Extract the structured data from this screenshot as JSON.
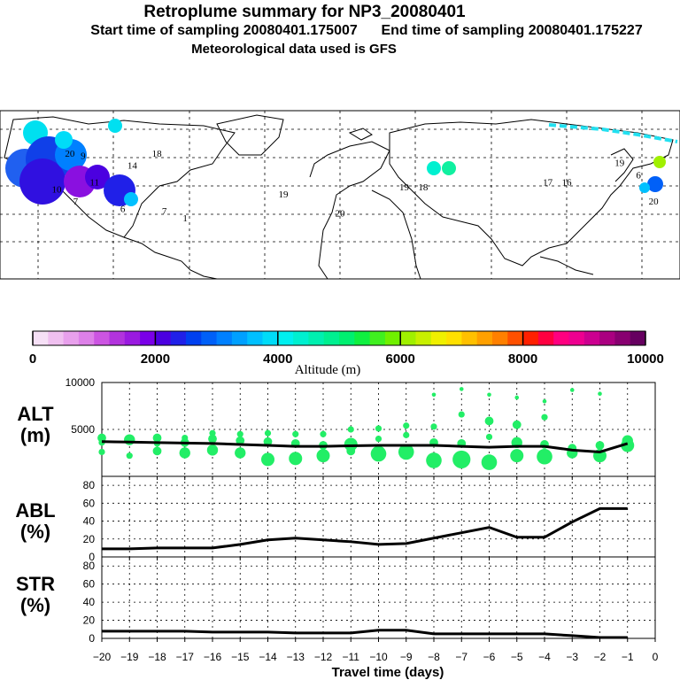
{
  "header": {
    "title": "Retroplume summary for NP3_20080401",
    "start_label": "Start time of sampling 20080401.175007",
    "end_label": "End time of sampling 20080401.175227",
    "met_label": "Meteorological data used is GFS"
  },
  "chart_data": [
    {
      "type": "map",
      "title": "Retroplume positions",
      "map_labels": [
        {
          "text": "20",
          "lon": -143,
          "lat": 72,
          "alt": 3500
        },
        {
          "text": "9",
          "lon": -136,
          "lat": 71,
          "alt": 3400
        },
        {
          "text": "18",
          "lon": -97,
          "lat": 72,
          "alt": 3700
        },
        {
          "text": "14",
          "lon": -110,
          "lat": 67,
          "alt": 3300
        },
        {
          "text": "11",
          "lon": -130,
          "lat": 60,
          "alt": 2200
        },
        {
          "text": "10",
          "lon": -150,
          "lat": 57,
          "alt": 2000
        },
        {
          "text": "7",
          "lon": -140,
          "lat": 52,
          "alt": 1500
        },
        {
          "text": "6",
          "lon": -115,
          "lat": 49,
          "alt": 1200
        },
        {
          "text": "7",
          "lon": -93,
          "lat": 48,
          "alt": 2000
        },
        {
          "text": "1",
          "lon": -82,
          "lat": 45,
          "alt": 2400
        },
        {
          "text": "19",
          "lon": -30,
          "lat": 55,
          "alt": 3900
        },
        {
          "text": "20",
          "lon": 0,
          "lat": 47,
          "alt": 4400
        },
        {
          "text": "19",
          "lon": 34,
          "lat": 58,
          "alt": 3700
        },
        {
          "text": "18",
          "lon": 44,
          "lat": 58,
          "alt": 4200
        },
        {
          "text": "17",
          "lon": 110,
          "lat": 60,
          "alt": 4800
        },
        {
          "text": "16",
          "lon": 120,
          "lat": 60,
          "alt": 5000
        },
        {
          "text": "19",
          "lon": 148,
          "lat": 68,
          "alt": 6300
        },
        {
          "text": "6",
          "lon": 158,
          "lat": 63,
          "alt": 6400
        },
        {
          "text": "20",
          "lon": 166,
          "lat": 52,
          "alt": 2300
        }
      ]
    },
    {
      "type": "colorbar",
      "xlabel": "Altitude (m)",
      "range": [
        0,
        10000
      ],
      "tick_labels": [
        "0",
        "2000",
        "4000",
        "6000",
        "8000",
        "10000"
      ],
      "colors": [
        "#f6e0f6",
        "#f0c0f0",
        "#e8a0ec",
        "#dd80e8",
        "#cc55e2",
        "#b233dd",
        "#9a1ae0",
        "#7a00e8",
        "#4b00e0",
        "#2020e8",
        "#0040f0",
        "#0060f8",
        "#0080ff",
        "#00a0ff",
        "#00c0ff",
        "#00dcf8",
        "#00f0f0",
        "#00f0d0",
        "#00f0b0",
        "#00f090",
        "#00f070",
        "#10f040",
        "#40f020",
        "#70f000",
        "#a0f000",
        "#c8f000",
        "#f0f000",
        "#ffe000",
        "#ffc000",
        "#ffa000",
        "#ff8000",
        "#ff5000",
        "#ff2000",
        "#ff0040",
        "#ff0080",
        "#ee0090",
        "#cc0090",
        "#aa0080",
        "#880070",
        "#660060"
      ]
    },
    {
      "type": "scatter+line",
      "panel": "ALT",
      "ylabel": "ALT (m)",
      "ylim": [
        0,
        10000
      ],
      "y_tick_labels": [
        "5000",
        "10000"
      ],
      "x": [
        -20,
        -19,
        -18,
        -17,
        -16,
        -15,
        -14,
        -13,
        -12,
        -11,
        -10,
        -9,
        -8,
        -7,
        -6,
        -5,
        -4,
        -3,
        -2,
        -1
      ],
      "mean": [
        3700,
        3650,
        3600,
        3550,
        3500,
        3400,
        3300,
        3200,
        3200,
        3250,
        3300,
        3300,
        3300,
        3200,
        3100,
        3200,
        3200,
        2800,
        2600,
        3500
      ],
      "points": [
        {
          "x": -20,
          "y": 4100,
          "size": 3
        },
        {
          "x": -20,
          "y": 3600,
          "size": 2
        },
        {
          "x": -20,
          "y": 2600,
          "size": 2
        },
        {
          "x": -19,
          "y": 3900,
          "size": 4
        },
        {
          "x": -19,
          "y": 2200,
          "size": 2
        },
        {
          "x": -18,
          "y": 4100,
          "size": 3
        },
        {
          "x": -18,
          "y": 3500,
          "size": 2
        },
        {
          "x": -18,
          "y": 2700,
          "size": 3
        },
        {
          "x": -17,
          "y": 4100,
          "size": 2
        },
        {
          "x": -17,
          "y": 3600,
          "size": 3
        },
        {
          "x": -17,
          "y": 2500,
          "size": 4
        },
        {
          "x": -16,
          "y": 4600,
          "size": 2
        },
        {
          "x": -16,
          "y": 4000,
          "size": 3
        },
        {
          "x": -16,
          "y": 2800,
          "size": 4
        },
        {
          "x": -15,
          "y": 4500,
          "size": 2
        },
        {
          "x": -15,
          "y": 3800,
          "size": 3
        },
        {
          "x": -15,
          "y": 2500,
          "size": 4
        },
        {
          "x": -14,
          "y": 4600,
          "size": 2
        },
        {
          "x": -14,
          "y": 3700,
          "size": 3
        },
        {
          "x": -14,
          "y": 1800,
          "size": 5
        },
        {
          "x": -13,
          "y": 4500,
          "size": 2
        },
        {
          "x": -13,
          "y": 3500,
          "size": 3
        },
        {
          "x": -13,
          "y": 1900,
          "size": 5
        },
        {
          "x": -12,
          "y": 4500,
          "size": 2
        },
        {
          "x": -12,
          "y": 3300,
          "size": 3
        },
        {
          "x": -12,
          "y": 2200,
          "size": 5
        },
        {
          "x": -11,
          "y": 5000,
          "size": 2
        },
        {
          "x": -11,
          "y": 3400,
          "size": 5
        },
        {
          "x": -11,
          "y": 2700,
          "size": 3
        },
        {
          "x": -10,
          "y": 5100,
          "size": 2
        },
        {
          "x": -10,
          "y": 4000,
          "size": 2
        },
        {
          "x": -10,
          "y": 2400,
          "size": 6
        },
        {
          "x": -9,
          "y": 5400,
          "size": 2
        },
        {
          "x": -9,
          "y": 4400,
          "size": 2
        },
        {
          "x": -9,
          "y": 2600,
          "size": 6
        },
        {
          "x": -8,
          "y": 8700,
          "size": 1
        },
        {
          "x": -8,
          "y": 5300,
          "size": 2
        },
        {
          "x": -8,
          "y": 3600,
          "size": 3
        },
        {
          "x": -8,
          "y": 1700,
          "size": 6
        },
        {
          "x": -7,
          "y": 9300,
          "size": 1
        },
        {
          "x": -7,
          "y": 6600,
          "size": 2
        },
        {
          "x": -7,
          "y": 3500,
          "size": 3
        },
        {
          "x": -7,
          "y": 1800,
          "size": 7
        },
        {
          "x": -6,
          "y": 8700,
          "size": 1
        },
        {
          "x": -6,
          "y": 5900,
          "size": 3
        },
        {
          "x": -6,
          "y": 4200,
          "size": 2
        },
        {
          "x": -6,
          "y": 1500,
          "size": 6
        },
        {
          "x": -5,
          "y": 8400,
          "size": 1
        },
        {
          "x": -5,
          "y": 5500,
          "size": 3
        },
        {
          "x": -5,
          "y": 3600,
          "size": 4
        },
        {
          "x": -5,
          "y": 2200,
          "size": 5
        },
        {
          "x": -4,
          "y": 8000,
          "size": 1
        },
        {
          "x": -4,
          "y": 6300,
          "size": 2
        },
        {
          "x": -4,
          "y": 3400,
          "size": 3
        },
        {
          "x": -4,
          "y": 2100,
          "size": 6
        },
        {
          "x": -3,
          "y": 9200,
          "size": 1
        },
        {
          "x": -3,
          "y": 3000,
          "size": 3
        },
        {
          "x": -3,
          "y": 2500,
          "size": 4
        },
        {
          "x": -2,
          "y": 8800,
          "size": 1
        },
        {
          "x": -2,
          "y": 3300,
          "size": 3
        },
        {
          "x": -2,
          "y": 2200,
          "size": 5
        },
        {
          "x": -1,
          "y": 3800,
          "size": 4
        },
        {
          "x": -1,
          "y": 3300,
          "size": 5
        }
      ]
    },
    {
      "type": "line",
      "panel": "ABL",
      "ylabel": "ABL (%)",
      "ylim": [
        0,
        90
      ],
      "y_tick_labels": [
        "0",
        "20",
        "40",
        "60",
        "80"
      ],
      "x": [
        -20,
        -19,
        -18,
        -17,
        -16,
        -15,
        -14,
        -13,
        -12,
        -11,
        -10,
        -9,
        -8,
        -7,
        -6,
        -5,
        -4,
        -3,
        -2,
        -1
      ],
      "values": [
        9,
        9,
        10,
        10,
        10,
        14,
        19,
        21,
        19,
        17,
        14,
        15,
        21,
        27,
        33,
        22,
        22,
        39,
        54,
        54
      ]
    },
    {
      "type": "line",
      "panel": "STR",
      "ylabel": "STR (%)",
      "ylim": [
        0,
        90
      ],
      "y_tick_labels": [
        "0",
        "20",
        "40",
        "60",
        "80"
      ],
      "x": [
        -20,
        -19,
        -18,
        -17,
        -16,
        -15,
        -14,
        -13,
        -12,
        -11,
        -10,
        -9,
        -8,
        -7,
        -6,
        -5,
        -4,
        -3,
        -2,
        -1
      ],
      "values": [
        8,
        8,
        8,
        8,
        7,
        7,
        7,
        6,
        6,
        6,
        9,
        9,
        5,
        5,
        5,
        5,
        5,
        3,
        1,
        1
      ]
    }
  ],
  "xaxis": {
    "xlabel": "Travel time (days)",
    "xlim": [
      -20,
      0
    ],
    "tick_labels": [
      "−20",
      "−19",
      "−18",
      "−17",
      "−16",
      "−15",
      "−14",
      "−13",
      "−12",
      "−11",
      "−10",
      "−9",
      "−8",
      "−7",
      "−6",
      "−5",
      "−4",
      "−3",
      "−2",
      "−1",
      "0"
    ]
  },
  "colors": {
    "mean_line": "#000000",
    "alt_points": "#22ee66",
    "map_track": "#22e0f0"
  }
}
